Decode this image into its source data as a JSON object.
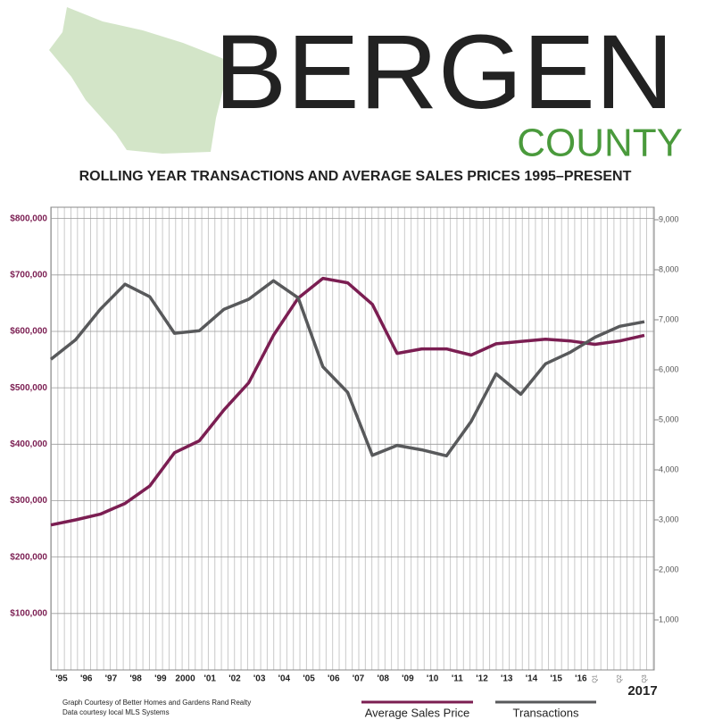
{
  "chart_data": {
    "type": "line",
    "title": "BERGEN",
    "title_2": "COUNTY",
    "subtitle": "ROLLING YEAR TRANSACTIONS AND AVERAGE SALES PRICES 1995–PRESENT",
    "notes": [
      "Graph Courtesy of Better Homes and Gardens Rand Realty",
      "Data courtesy local MLS Systems"
    ],
    "x_group_label": "2017",
    "categories": [
      "'95",
      "'96",
      "'97",
      "'98",
      "'99",
      "2000",
      "'01",
      "'02",
      "'03",
      "'04",
      "'05",
      "'06",
      "'07",
      "'08",
      "'09",
      "'10",
      "'11",
      "'12",
      "'13",
      "'14",
      "'15",
      "'16",
      "Q1",
      "Q2",
      "Q3"
    ],
    "series": [
      {
        "name": "Average Sales Price",
        "color": "#7b1e52",
        "values": [
          257000,
          266000,
          276000,
          295000,
          326000,
          385000,
          406000,
          461000,
          509000,
          593000,
          659000,
          694000,
          686000,
          648000,
          561000,
          569000,
          569000,
          558000,
          578000,
          582000,
          586000,
          583000,
          577000,
          583000,
          593000
        ]
      },
      {
        "name": "Transactions",
        "color": "#58595b",
        "axis": "y2",
        "values": [
          6210,
          6600,
          7210,
          7710,
          7460,
          6730,
          6780,
          7210,
          7410,
          7780,
          7440,
          6060,
          5550,
          4290,
          4490,
          4400,
          4280,
          4970,
          5920,
          5510,
          6120,
          6350,
          6650,
          6870,
          6960
        ]
      }
    ],
    "ylim": [
      0,
      820000
    ],
    "yticks": [
      {
        "value": 100000,
        "label": "$100,000"
      },
      {
        "value": 200000,
        "label": "$200,000"
      },
      {
        "value": 300000,
        "label": "$300,000"
      },
      {
        "value": 400000,
        "label": "$400,000"
      },
      {
        "value": 500000,
        "label": "$500,000"
      },
      {
        "value": 600000,
        "label": "$600,000"
      },
      {
        "value": 700000,
        "label": "$700,000"
      },
      {
        "value": 800000,
        "label": "$800,000"
      }
    ],
    "y2lim": [
      0,
      9250
    ],
    "y2ticks": [
      {
        "value": 1000,
        "label": "1,000"
      },
      {
        "value": 2000,
        "label": "2,000"
      },
      {
        "value": 3000,
        "label": "3,000"
      },
      {
        "value": 4000,
        "label": "4,000"
      },
      {
        "value": 5000,
        "label": "5,000"
      },
      {
        "value": 6000,
        "label": "6,000"
      },
      {
        "value": 7000,
        "label": "7,000"
      },
      {
        "value": 8000,
        "label": "8,000"
      },
      {
        "value": 9000,
        "label": "9,000"
      }
    ],
    "grid": true
  }
}
